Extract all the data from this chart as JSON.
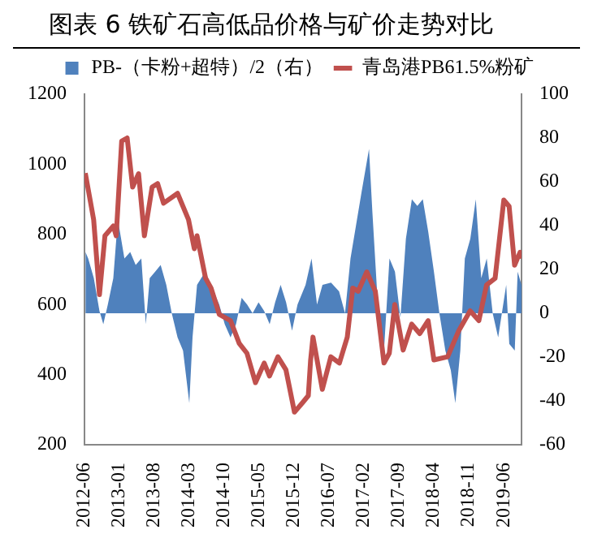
{
  "chart_data": {
    "type": "line",
    "title": "图表 6 铁矿石高低品价格与矿价走势对比",
    "legend": "top",
    "xlim": [
      "2012-06",
      "2019-09-18"
    ],
    "xticks": [
      "2012-06",
      "2013-01",
      "2013-08",
      "2014-03",
      "2014-10",
      "2015-05",
      "2015-12",
      "2016-07",
      "2017-02",
      "2017-09",
      "2018-04",
      "2018-11",
      "2019-06"
    ],
    "ylim": [
      200,
      1200
    ],
    "yticks": [
      200,
      400,
      600,
      800,
      1000,
      1200
    ],
    "y2lim": [
      -60,
      100
    ],
    "y2ticks": [
      -60,
      -40,
      -20,
      0,
      20,
      40,
      60,
      80,
      100
    ],
    "series": [
      {
        "name": "PB-（卡粉+超特）/2（右）",
        "type": "area",
        "axis": "y2",
        "color": "#4f81bd",
        "x": [
          "2012-06-07",
          "2012-06-24",
          "2012-07-28",
          "2012-09-01",
          "2012-09-25",
          "2012-10-22",
          "2012-11-25",
          "2012-12-22",
          "2013-02-01",
          "2013-03-06",
          "2013-04-09",
          "2013-05-13",
          "2013-06-10",
          "2013-07-03",
          "2013-08-06",
          "2013-09-09",
          "2013-10-13",
          "2013-11-16",
          "2013-12-21",
          "2014-01-24",
          "2014-03-01",
          "2014-03-21",
          "2014-04-18",
          "2014-06-07",
          "2014-07-28",
          "2014-09-01",
          "2014-10-04",
          "2014-11-09",
          "2014-12-12",
          "2015-01-16",
          "2015-02-19",
          "2015-03-22",
          "2015-04-28",
          "2015-06-01",
          "2015-07-04",
          "2015-08-07",
          "2015-09-10",
          "2015-10-13",
          "2015-11-19",
          "2015-12-22",
          "2016-02-10",
          "2016-03-16",
          "2016-04-19",
          "2016-05-22",
          "2016-07-13",
          "2016-09-01",
          "2016-10-07",
          "2016-11-10",
          "2016-12-13",
          "2017-01-16",
          "2017-03-01",
          "2017-03-22",
          "2017-04-28",
          "2017-06-01",
          "2017-07-04",
          "2017-08-07",
          "2017-09-10",
          "2017-10-13",
          "2017-11-19",
          "2017-12-22",
          "2018-01-25",
          "2018-02-28",
          "2018-04-01",
          "2018-05-04",
          "2018-06-10",
          "2018-07-13",
          "2018-08-10",
          "2018-09-10",
          "2018-10-07",
          "2018-11-10",
          "2018-12-13",
          "2019-01-16",
          "2019-02-19",
          "2019-03-25",
          "2019-04-28",
          "2019-06-16",
          "2019-07-04",
          "2019-08-07",
          "2019-08-25",
          "2019-09-18"
        ],
        "values": [
          28,
          25,
          16,
          1,
          -5,
          4,
          16,
          43,
          25,
          28,
          22,
          25,
          -5,
          16,
          19,
          22,
          13,
          0,
          -11,
          -17,
          -41,
          -11,
          13,
          19,
          10,
          4,
          -5,
          -11,
          -5,
          7,
          4,
          0,
          5,
          1,
          -5,
          5,
          13,
          5,
          -8,
          4,
          13,
          25,
          4,
          13,
          14,
          10,
          0,
          25,
          40,
          55,
          75,
          46,
          0,
          -17,
          25,
          19,
          -2,
          34,
          52,
          49,
          52,
          37,
          19,
          0,
          -17,
          -26,
          -41,
          -17,
          25,
          34,
          52,
          16,
          25,
          0,
          -11,
          13,
          -14,
          -17,
          19,
          13
        ]
      },
      {
        "name": "青岛港PB61.5%粉矿",
        "type": "line",
        "color": "#c0504d",
        "x": [
          "2012-06-06",
          "2012-07-27",
          "2012-09-01",
          "2012-10-04",
          "2012-11-25",
          "2012-12-12",
          "2013-01-15",
          "2013-02-18",
          "2013-03-21",
          "2013-04-27",
          "2013-06-01",
          "2013-07-18",
          "2013-08-21",
          "2013-09-27",
          "2013-12-21",
          "2014-02-27",
          "2014-04-01",
          "2014-04-18",
          "2014-06-09",
          "2014-07-12",
          "2014-09-01",
          "2014-11-09",
          "2015-01-01",
          "2015-02-18",
          "2015-04-09",
          "2015-06-01",
          "2015-07-03",
          "2015-08-24",
          "2015-10-12",
          "2015-12-03",
          "2016-01-24",
          "2016-02-27",
          "2016-03-10",
          "2016-03-25",
          "2016-05-21",
          "2016-07-12",
          "2016-09-03",
          "2016-10-21",
          "2016-11-24",
          "2016-12-27",
          "2017-02-18",
          "2017-04-09",
          "2017-06-01",
          "2017-07-03",
          "2017-08-06",
          "2017-09-27",
          "2017-11-18",
          "2018-01-06",
          "2018-02-27",
          "2018-04-01",
          "2018-06-24",
          "2018-09-01",
          "2018-11-09",
          "2019-01-01",
          "2019-02-18",
          "2019-04-09",
          "2019-06-01",
          "2019-07-03",
          "2019-08-06",
          "2019-09-09",
          "2019-09-18"
        ],
        "values": [
          975,
          842,
          628,
          796,
          824,
          796,
          1066,
          1075,
          935,
          973,
          796,
          935,
          945,
          889,
          917,
          842,
          759,
          796,
          675,
          647,
          572,
          554,
          489,
          461,
          377,
          433,
          396,
          451,
          414,
          293,
          321,
          340,
          440,
          507,
          358,
          451,
          433,
          507,
          647,
          638,
          693,
          638,
          433,
          461,
          600,
          470,
          544,
          517,
          554,
          442,
          451,
          526,
          582,
          554,
          656,
          675,
          898,
          880,
          712,
          749,
          731
        ]
      }
    ]
  }
}
